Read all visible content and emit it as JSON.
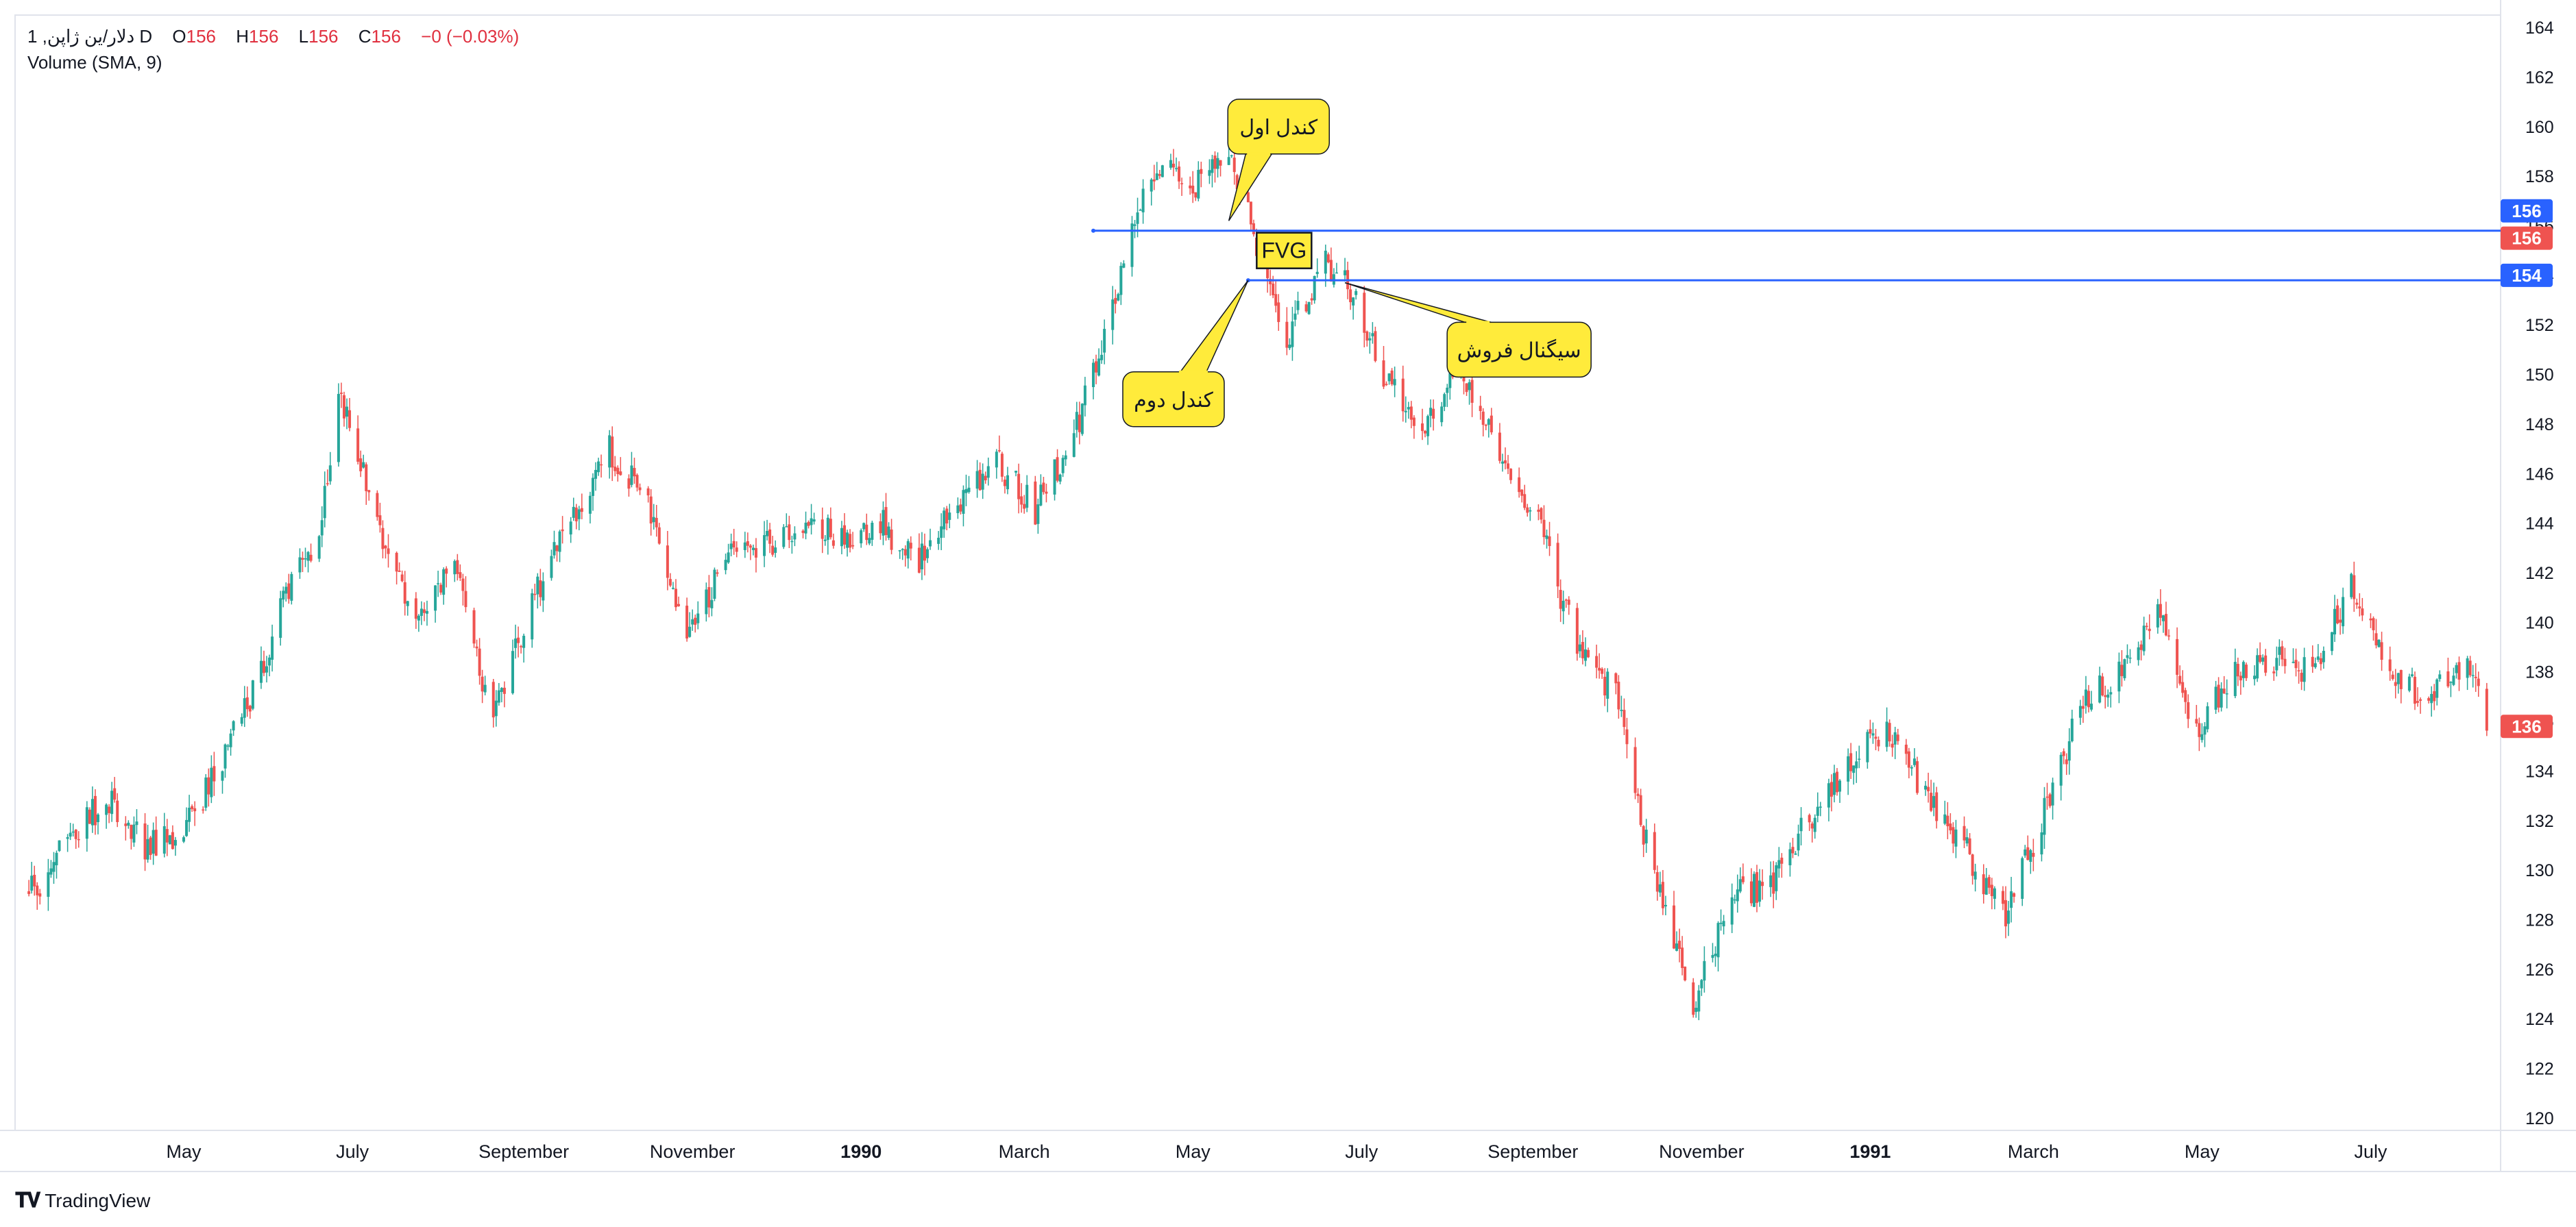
{
  "header": {
    "symbol": "1 ,دلار/ین ژاپن D",
    "o_label": "O",
    "o_value": "156",
    "h_label": "H",
    "h_value": "156",
    "l_label": "L",
    "l_value": "156",
    "c_label": "C",
    "c_value": "156",
    "change": "−0 (−0.03%)",
    "indicator": "Volume (SMA, 9)"
  },
  "brand": {
    "name": "TradingView",
    "icon": "tradingview-logo-icon"
  },
  "colors": {
    "up": "#26a69a",
    "down": "#ef5350",
    "hline": "#2962ff",
    "callout_fill": "#ffeb3b",
    "callout_stroke": "#131722"
  },
  "chart_data": {
    "type": "candlestick",
    "x_axis": {
      "labels": [
        {
          "text": "May",
          "month": 5,
          "year": 1989
        },
        {
          "text": "July",
          "month": 7,
          "year": 1989
        },
        {
          "text": "September",
          "month": 9,
          "year": 1989
        },
        {
          "text": "November",
          "month": 11,
          "year": 1989
        },
        {
          "text": "1990",
          "month": 1,
          "year": 1990,
          "bold": true
        },
        {
          "text": "March",
          "month": 3,
          "year": 1990
        },
        {
          "text": "May",
          "month": 5,
          "year": 1990
        },
        {
          "text": "July",
          "month": 7,
          "year": 1990
        },
        {
          "text": "September",
          "month": 9,
          "year": 1990
        },
        {
          "text": "November",
          "month": 11,
          "year": 1990
        },
        {
          "text": "1991",
          "month": 1,
          "year": 1991,
          "bold": true
        },
        {
          "text": "March",
          "month": 3,
          "year": 1991
        },
        {
          "text": "May",
          "month": 5,
          "year": 1991
        },
        {
          "text": "July",
          "month": 7,
          "year": 1991
        }
      ]
    },
    "y_axis": {
      "ticks": [
        120,
        122,
        124,
        126,
        128,
        130,
        132,
        134,
        136,
        138,
        140,
        142,
        144,
        146,
        148,
        150,
        152,
        154,
        156,
        158,
        160,
        162,
        164
      ],
      "range": [
        119.5,
        164.5
      ]
    },
    "series": [
      {
        "date": "1989-03-06",
        "close": 129.0
      },
      {
        "date": "1989-03-20",
        "close": 131.0
      },
      {
        "date": "1989-04-03",
        "close": 133.0
      },
      {
        "date": "1989-04-17",
        "close": 131.0
      },
      {
        "date": "1989-05-01",
        "close": 131.5
      },
      {
        "date": "1989-05-15",
        "close": 134.5
      },
      {
        "date": "1989-05-29",
        "close": 138.0
      },
      {
        "date": "1989-06-12",
        "close": 143.0
      },
      {
        "date": "1989-06-19",
        "close": 143.0
      },
      {
        "date": "1989-06-26",
        "close": 149.5
      },
      {
        "date": "1989-07-10",
        "close": 144.0
      },
      {
        "date": "1989-07-24",
        "close": 140.0
      },
      {
        "date": "1989-08-07",
        "close": 142.5
      },
      {
        "date": "1989-08-21",
        "close": 136.0
      },
      {
        "date": "1989-09-04",
        "close": 141.0
      },
      {
        "date": "1989-09-18",
        "close": 144.0
      },
      {
        "date": "1989-10-02",
        "close": 147.0
      },
      {
        "date": "1989-10-16",
        "close": 145.0
      },
      {
        "date": "1989-10-30",
        "close": 139.5
      },
      {
        "date": "1989-11-13",
        "close": 142.5
      },
      {
        "date": "1989-11-27",
        "close": 143.0
      },
      {
        "date": "1989-12-11",
        "close": 144.0
      },
      {
        "date": "1989-12-25",
        "close": 143.5
      },
      {
        "date": "1990-01-08",
        "close": 144.0
      },
      {
        "date": "1990-01-22",
        "close": 142.5
      },
      {
        "date": "1990-02-05",
        "close": 145.0
      },
      {
        "date": "1990-02-19",
        "close": 146.5
      },
      {
        "date": "1990-03-05",
        "close": 144.5
      },
      {
        "date": "1990-03-19",
        "close": 147.5
      },
      {
        "date": "1990-04-02",
        "close": 153.0
      },
      {
        "date": "1990-04-16",
        "close": 158.5
      },
      {
        "date": "1990-04-30",
        "close": 157.5
      },
      {
        "date": "1990-05-14",
        "close": 158.5
      },
      {
        "date": "1990-05-21",
        "close": 156.5
      },
      {
        "date": "1990-06-04",
        "close": 151.5
      },
      {
        "date": "1990-06-18",
        "close": 154.5
      },
      {
        "date": "1990-06-25",
        "close": 154.0
      },
      {
        "date": "1990-07-09",
        "close": 150.0
      },
      {
        "date": "1990-07-23",
        "close": 148.0
      },
      {
        "date": "1990-08-06",
        "close": 150.5
      },
      {
        "date": "1990-08-20",
        "close": 146.5
      },
      {
        "date": "1990-09-03",
        "close": 144.0
      },
      {
        "date": "1990-09-17",
        "close": 139.0
      },
      {
        "date": "1990-10-01",
        "close": 137.0
      },
      {
        "date": "1990-10-15",
        "close": 129.5
      },
      {
        "date": "1990-10-29",
        "close": 124.5
      },
      {
        "date": "1990-11-12",
        "close": 129.0
      },
      {
        "date": "1990-11-26",
        "close": 129.5
      },
      {
        "date": "1990-12-10",
        "close": 132.0
      },
      {
        "date": "1990-12-24",
        "close": 134.0
      },
      {
        "date": "1991-01-07",
        "close": 136.0
      },
      {
        "date": "1991-01-21",
        "close": 133.0
      },
      {
        "date": "1991-02-04",
        "close": 131.0
      },
      {
        "date": "1991-02-18",
        "close": 128.0
      },
      {
        "date": "1991-03-04",
        "close": 132.0
      },
      {
        "date": "1991-03-18",
        "close": 136.5
      },
      {
        "date": "1991-04-01",
        "close": 138.0
      },
      {
        "date": "1991-04-15",
        "close": 140.5
      },
      {
        "date": "1991-04-29",
        "close": 135.5
      },
      {
        "date": "1991-05-13",
        "close": 138.0
      },
      {
        "date": "1991-05-27",
        "close": 138.5
      },
      {
        "date": "1991-06-10",
        "close": 138.0
      },
      {
        "date": "1991-06-24",
        "close": 141.5
      },
      {
        "date": "1991-07-08",
        "close": 138.0
      },
      {
        "date": "1991-07-22",
        "close": 137.0
      },
      {
        "date": "1991-08-05",
        "close": 138.0
      },
      {
        "date": "1991-08-12",
        "close": 136.0
      }
    ],
    "price_tags": [
      {
        "price": 156,
        "label": "156",
        "color": "#2962ff",
        "y": 156.6
      },
      {
        "price": 156,
        "label": "156",
        "color": "#ef5350",
        "y": 155.5
      },
      {
        "price": 154,
        "label": "154",
        "color": "#2962ff",
        "y": 154.0
      },
      {
        "price": 136,
        "label": "136",
        "color": "#ef5350",
        "y": 135.8
      }
    ],
    "horizontal_lines": [
      {
        "price": 155.8,
        "from_date": "1990-03-26",
        "color": "#2962ff"
      },
      {
        "price": 153.8,
        "from_date": "1990-05-21",
        "color": "#2962ff"
      }
    ],
    "annotations": [
      {
        "kind": "callout",
        "text": "کندل اول",
        "anchor_date": "1990-05-14",
        "anchor_price": 156.2,
        "box_date": "1990-06-01",
        "box_price": 160.0
      },
      {
        "kind": "callout",
        "text": "کندل دوم",
        "anchor_date": "1990-05-21",
        "anchor_price": 153.8,
        "box_date": "1990-04-24",
        "box_price": 149.0
      },
      {
        "kind": "callout",
        "text": "سیگنال فروش",
        "anchor_date": "1990-06-25",
        "anchor_price": 153.7,
        "box_date": "1990-08-27",
        "box_price": 151.0
      },
      {
        "kind": "label",
        "text": "FVG",
        "anchor_date": "1990-06-03",
        "anchor_price": 155.0
      }
    ]
  }
}
